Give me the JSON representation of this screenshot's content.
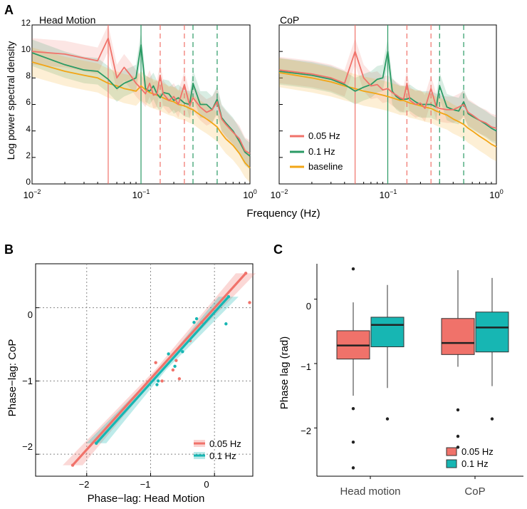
{
  "panels": {
    "a": "A",
    "b": "B",
    "c": "C"
  },
  "colors": {
    "hz005": "#f0726a",
    "hz01": "#2a9a64",
    "baseline": "#f2a516",
    "teal": "#17b6b3",
    "grid": "#888888"
  },
  "chart_data": [
    {
      "id": "psd_head",
      "type": "line",
      "title": "Head Motion",
      "ylabel": "Log power spectral density",
      "xlabel": "Frequency (Hz)",
      "xscale": "log",
      "xlim": [
        0.01,
        1
      ],
      "ylim": [
        0,
        12
      ],
      "yticks": [
        "0",
        "2",
        "4",
        "6",
        "8",
        "10",
        "12"
      ],
      "xticks": [
        {
          "base": "10",
          "exp": "−2"
        },
        {
          "base": "10",
          "exp": "−1"
        },
        {
          "base": "10",
          "exp": "0"
        }
      ],
      "markers_solid": [
        {
          "x": 0.05,
          "series": "0.05 Hz"
        },
        {
          "x": 0.1,
          "series": "0.1 Hz"
        }
      ],
      "markers_dashed": [
        {
          "x": 0.15,
          "series": "0.05 Hz"
        },
        {
          "x": 0.25,
          "series": "0.05 Hz"
        },
        {
          "x": 0.3,
          "series": "0.1 Hz"
        },
        {
          "x": 0.5,
          "series": "0.1 Hz"
        }
      ],
      "series": [
        {
          "name": "0.05 Hz",
          "x": [
            0.01,
            0.02,
            0.03,
            0.04,
            0.05,
            0.06,
            0.07,
            0.08,
            0.09,
            0.1,
            0.11,
            0.12,
            0.13,
            0.14,
            0.15,
            0.16,
            0.18,
            0.2,
            0.22,
            0.25,
            0.28,
            0.3,
            0.35,
            0.4,
            0.45,
            0.5,
            0.55,
            0.6,
            0.7,
            0.8,
            0.9,
            1.0
          ],
          "y": [
            10.0,
            9.8,
            9.5,
            9.3,
            11.0,
            8.0,
            8.8,
            8.2,
            7.6,
            7.2,
            6.8,
            7.6,
            6.7,
            6.8,
            8.2,
            6.8,
            6.3,
            6.6,
            6.0,
            7.5,
            5.9,
            6.5,
            5.8,
            5.4,
            5.6,
            6.2,
            4.9,
            4.5,
            3.9,
            3.4,
            2.5,
            2.3
          ],
          "band": 1.0
        },
        {
          "name": "0.1 Hz",
          "x": [
            0.01,
            0.02,
            0.03,
            0.04,
            0.05,
            0.06,
            0.07,
            0.08,
            0.09,
            0.1,
            0.11,
            0.12,
            0.13,
            0.14,
            0.15,
            0.16,
            0.18,
            0.2,
            0.22,
            0.25,
            0.28,
            0.3,
            0.35,
            0.4,
            0.45,
            0.5,
            0.55,
            0.6,
            0.7,
            0.8,
            0.9,
            1.0
          ],
          "y": [
            9.9,
            9.0,
            8.6,
            8.5,
            7.9,
            7.2,
            7.6,
            7.8,
            8.0,
            10.5,
            7.2,
            7.0,
            7.4,
            6.8,
            6.5,
            6.9,
            6.8,
            6.3,
            6.5,
            6.1,
            6.0,
            7.6,
            6.0,
            6.0,
            5.6,
            6.4,
            5.0,
            4.6,
            4.0,
            3.2,
            2.4,
            2.1
          ],
          "band": 1.0
        },
        {
          "name": "baseline",
          "x": [
            0.01,
            0.02,
            0.03,
            0.04,
            0.05,
            0.06,
            0.07,
            0.08,
            0.09,
            0.1,
            0.11,
            0.12,
            0.13,
            0.14,
            0.15,
            0.16,
            0.18,
            0.2,
            0.22,
            0.25,
            0.28,
            0.3,
            0.35,
            0.4,
            0.45,
            0.5,
            0.55,
            0.6,
            0.7,
            0.8,
            0.9,
            1.0
          ],
          "y": [
            9.2,
            8.5,
            8.2,
            8.0,
            7.6,
            7.4,
            7.2,
            7.1,
            7.0,
            7.4,
            7.1,
            6.9,
            6.8,
            6.7,
            6.6,
            6.5,
            6.3,
            6.2,
            6.0,
            5.9,
            5.7,
            5.6,
            5.2,
            4.9,
            4.6,
            4.3,
            3.8,
            3.4,
            2.9,
            2.3,
            1.6,
            1.2
          ],
          "band": 1.1
        }
      ]
    },
    {
      "id": "psd_cop",
      "type": "line",
      "title": "CoP",
      "xlabel": "",
      "xscale": "log",
      "xlim": [
        0.01,
        1
      ],
      "ylim": [
        0,
        12
      ],
      "xticks": [
        {
          "base": "10",
          "exp": "−2"
        },
        {
          "base": "10",
          "exp": "−1"
        },
        {
          "base": "10",
          "exp": "0"
        }
      ],
      "markers_solid": [
        {
          "x": 0.05,
          "series": "0.05 Hz"
        },
        {
          "x": 0.1,
          "series": "0.1 Hz"
        }
      ],
      "markers_dashed": [
        {
          "x": 0.15,
          "series": "0.05 Hz"
        },
        {
          "x": 0.25,
          "series": "0.05 Hz"
        },
        {
          "x": 0.3,
          "series": "0.1 Hz"
        },
        {
          "x": 0.5,
          "series": "0.1 Hz"
        }
      ],
      "legend": [
        "0.05 Hz",
        "0.1 Hz",
        "baseline"
      ],
      "series": [
        {
          "name": "0.05 Hz",
          "x": [
            0.01,
            0.02,
            0.03,
            0.04,
            0.05,
            0.06,
            0.07,
            0.08,
            0.09,
            0.1,
            0.11,
            0.12,
            0.13,
            0.14,
            0.15,
            0.16,
            0.18,
            0.2,
            0.22,
            0.25,
            0.28,
            0.3,
            0.35,
            0.4,
            0.45,
            0.5,
            0.55,
            0.6,
            0.7,
            0.8,
            0.9,
            1.0
          ],
          "y": [
            8.6,
            8.3,
            8.0,
            7.6,
            10.0,
            8.0,
            7.4,
            7.5,
            7.1,
            7.2,
            6.9,
            6.7,
            6.5,
            6.4,
            7.6,
            6.3,
            6.0,
            6.1,
            5.7,
            7.2,
            5.8,
            5.7,
            5.6,
            5.6,
            5.8,
            6.0,
            5.4,
            5.2,
            4.8,
            4.6,
            4.3,
            4.2
          ],
          "band": 1.0
        },
        {
          "name": "0.1 Hz",
          "x": [
            0.01,
            0.02,
            0.03,
            0.04,
            0.05,
            0.06,
            0.07,
            0.08,
            0.09,
            0.1,
            0.11,
            0.12,
            0.13,
            0.14,
            0.15,
            0.16,
            0.18,
            0.2,
            0.22,
            0.25,
            0.28,
            0.3,
            0.35,
            0.4,
            0.45,
            0.5,
            0.55,
            0.6,
            0.7,
            0.8,
            0.9,
            1.0
          ],
          "y": [
            8.5,
            8.2,
            7.9,
            7.5,
            7.0,
            7.3,
            7.5,
            7.9,
            8.0,
            10.0,
            7.0,
            6.6,
            6.4,
            6.4,
            6.4,
            6.5,
            6.2,
            6.0,
            6.0,
            6.0,
            5.8,
            7.4,
            5.8,
            5.6,
            5.5,
            6.2,
            5.3,
            5.1,
            4.8,
            4.5,
            4.2,
            4.0
          ],
          "band": 1.0
        },
        {
          "name": "baseline",
          "x": [
            0.01,
            0.02,
            0.03,
            0.04,
            0.05,
            0.06,
            0.07,
            0.08,
            0.09,
            0.1,
            0.11,
            0.12,
            0.13,
            0.14,
            0.15,
            0.16,
            0.18,
            0.2,
            0.22,
            0.25,
            0.28,
            0.3,
            0.35,
            0.4,
            0.45,
            0.5,
            0.55,
            0.6,
            0.7,
            0.8,
            0.9,
            1.0
          ],
          "y": [
            8.4,
            8.0,
            7.7,
            7.4,
            7.2,
            7.0,
            6.9,
            6.8,
            6.7,
            6.6,
            6.5,
            6.4,
            6.3,
            6.3,
            6.2,
            6.1,
            6.0,
            5.9,
            5.8,
            5.7,
            5.5,
            5.4,
            5.2,
            4.9,
            4.7,
            4.5,
            4.2,
            4.0,
            3.6,
            3.3,
            3.0,
            2.8
          ],
          "band": 1.1
        }
      ]
    },
    {
      "id": "scatter_phase",
      "type": "scatter",
      "xlabel": "Phase−lag: Head Motion",
      "ylabel": "Phase−lag: CoP",
      "xlim": [
        -2.8,
        0.6
      ],
      "ylim": [
        -2.3,
        0.6
      ],
      "xticks": [
        {
          "v": -2,
          "label": "−2"
        },
        {
          "v": -1,
          "label": "−1"
        },
        {
          "v": 0,
          "label": "0"
        }
      ],
      "yticks": [
        {
          "v": -2,
          "label": "−2"
        },
        {
          "v": -1,
          "label": "−1"
        },
        {
          "v": 0,
          "label": "0"
        }
      ],
      "legend": [
        "0.05 Hz",
        "0.1 Hz"
      ],
      "fits": [
        {
          "name": "0.05 Hz",
          "x": [
            -2.22,
            0.49
          ],
          "y": [
            -2.15,
            0.47
          ]
        },
        {
          "name": "0.1 Hz",
          "x": [
            -1.85,
            0.22
          ],
          "y": [
            -1.85,
            0.15
          ]
        }
      ],
      "series": [
        {
          "name": "0.05 Hz",
          "x": [
            -2.22,
            0.49,
            0.55,
            -0.55,
            -0.92,
            -0.82,
            -0.6,
            -0.38,
            -0.2,
            -0.65
          ],
          "y": [
            -2.15,
            0.47,
            0.07,
            -0.97,
            -0.75,
            -1.0,
            -0.72,
            -0.45,
            -0.2,
            -0.85
          ]
        },
        {
          "name": "0.1 Hz",
          "x": [
            -1.85,
            0.22,
            0.18,
            -0.72,
            -0.62,
            -0.9,
            -0.88,
            -0.32,
            -0.28,
            -0.5
          ],
          "y": [
            -1.85,
            0.15,
            -0.22,
            -0.63,
            -0.8,
            -1.05,
            -1.0,
            -0.2,
            -0.15,
            -0.6
          ]
        }
      ]
    },
    {
      "id": "box_phase",
      "type": "box",
      "ylabel": "Phase lag (rad)",
      "ylim": [
        -2.75,
        0.55
      ],
      "yticks": [
        {
          "v": 0,
          "label": "0"
        },
        {
          "v": -1,
          "label": "−1"
        },
        {
          "v": -2,
          "label": "−2"
        }
      ],
      "categories": [
        "Head motion",
        "CoP"
      ],
      "legend": [
        "0.05 Hz",
        "0.1 Hz"
      ],
      "series": [
        {
          "name": "0.05 Hz",
          "boxes": [
            {
              "whislo": -1.5,
              "q1": -0.93,
              "med": -0.72,
              "q3": -0.49,
              "whishi": -0.05,
              "outliers": [
                0.47,
                -1.7,
                -2.22,
                -2.62
              ]
            },
            {
              "whislo": -1.05,
              "q1": -0.86,
              "med": -0.68,
              "q3": -0.3,
              "whishi": 0.45,
              "outliers": [
                -1.72,
                -2.13,
                -2.3
              ]
            }
          ]
        },
        {
          "name": "0.1 Hz",
          "boxes": [
            {
              "whislo": -1.38,
              "q1": -0.74,
              "med": -0.4,
              "q3": -0.28,
              "whishi": 0.22,
              "outliers": [
                -1.86
              ]
            },
            {
              "whislo": -1.35,
              "q1": -0.82,
              "med": -0.44,
              "q3": -0.2,
              "whishi": 0.33,
              "outliers": [
                -1.86
              ]
            }
          ]
        }
      ]
    }
  ]
}
